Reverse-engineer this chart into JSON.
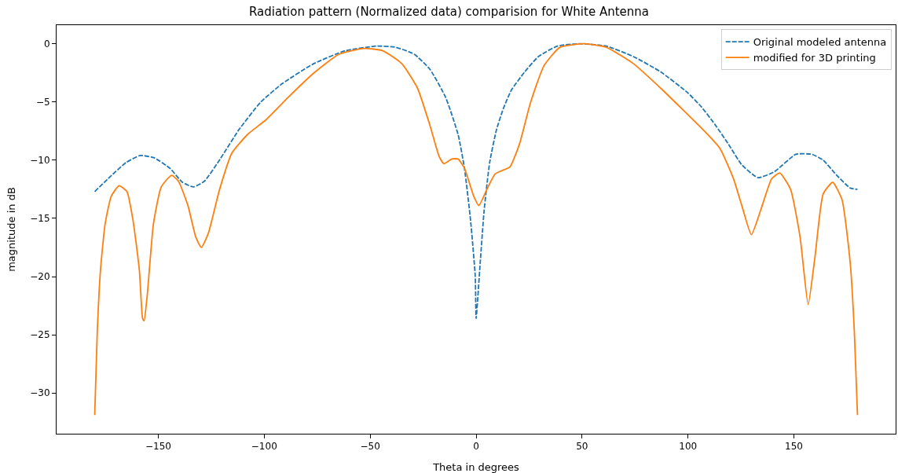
{
  "chart_data": {
    "type": "line",
    "title": "Radiation pattern (Normalized data) comparision for White Antenna",
    "xlabel": "Theta in degrees",
    "ylabel": "magnitude in dB",
    "xlim": [
      -198,
      198
    ],
    "xticks": [
      -150,
      -100,
      -50,
      0,
      50,
      100,
      150
    ],
    "ylim": [
      -33.5,
      1.6
    ],
    "yticks": [
      -30,
      -25,
      -20,
      -15,
      -10,
      -5,
      0
    ],
    "legend": "top right",
    "marker": "none",
    "series": [
      {
        "name": "Original modeled antenna",
        "color": "#1f77b4",
        "line_style": "dashed",
        "x": [
          -180,
          -172.6,
          -165.2,
          -158.5,
          -151.9,
          -144.5,
          -138.6,
          -133.4,
          -128.2,
          -120.8,
          -112,
          -101.6,
          -91.3,
          -76.5,
          -61.7,
          -46.9,
          -38,
          -29.2,
          -21.8,
          -14.4,
          -8.5,
          -5.5,
          -2.6,
          -0.4,
          0,
          1.9,
          3.8,
          6.4,
          9.6,
          12.8,
          16.6,
          23,
          29.4,
          38.4,
          48.6,
          61.4,
          74.2,
          87,
          99.8,
          106.2,
          112.6,
          119,
          125.4,
          133,
          140.7,
          150.9,
          158.6,
          163.8,
          170.2,
          176.6,
          180
        ],
        "values": [
          -12.7,
          -11.4,
          -10.2,
          -9.6,
          -9.8,
          -10.7,
          -11.9,
          -12.3,
          -11.8,
          -9.9,
          -7.4,
          -5.0,
          -3.4,
          -1.7,
          -0.6,
          -0.2,
          -0.3,
          -0.9,
          -2.2,
          -4.6,
          -7.8,
          -10.7,
          -15.2,
          -20.0,
          -23.6,
          -18.9,
          -14.3,
          -10.2,
          -7.4,
          -5.6,
          -4.0,
          -2.4,
          -1.1,
          -0.2,
          0.0,
          -0.2,
          -1.1,
          -2.4,
          -4.2,
          -5.4,
          -6.9,
          -8.6,
          -10.4,
          -11.5,
          -11.0,
          -9.5,
          -9.5,
          -10.0,
          -11.3,
          -12.4,
          -12.5
        ]
      },
      {
        "name": "modified for 3D printing",
        "color": "#ff7f0e",
        "line_style": "solid",
        "x": [
          -180,
          -178.8,
          -177.3,
          -175.1,
          -172.2,
          -168.5,
          -164.8,
          -161.9,
          -158.9,
          -157.4,
          -156.7,
          -155.2,
          -152.3,
          -148.6,
          -143.7,
          -140.5,
          -136,
          -132.3,
          -129.7,
          -126.4,
          -121.2,
          -115.3,
          -107.9,
          -99,
          -88.7,
          -76.5,
          -64.7,
          -52.9,
          -44,
          -35.1,
          -27.7,
          -21.8,
          -17.4,
          -15.2,
          -11.5,
          -8.5,
          -5.5,
          -1.1,
          1.3,
          5.1,
          8.9,
          12.1,
          15.9,
          20.5,
          25.6,
          32,
          39.6,
          51.2,
          61.4,
          74.2,
          87,
          97.2,
          108.8,
          115.1,
          121.5,
          125.4,
          129.9,
          134.3,
          139.5,
          143.3,
          148.4,
          152.9,
          156.7,
          160,
          163.8,
          168.3,
          172.7,
          176.6,
          178.5,
          180
        ],
        "values": [
          -31.9,
          -24.8,
          -19.5,
          -15.5,
          -13.1,
          -12.2,
          -12.7,
          -15.2,
          -19.5,
          -23.6,
          -23.8,
          -21.6,
          -15.5,
          -12.3,
          -11.3,
          -11.8,
          -13.9,
          -16.6,
          -17.5,
          -16.3,
          -12.6,
          -9.4,
          -7.8,
          -6.5,
          -4.6,
          -2.5,
          -0.9,
          -0.4,
          -0.6,
          -1.7,
          -3.8,
          -7.0,
          -9.7,
          -10.3,
          -9.9,
          -9.9,
          -10.7,
          -13.1,
          -13.9,
          -12.5,
          -11.2,
          -10.9,
          -10.6,
          -8.6,
          -5.1,
          -1.9,
          -0.3,
          0.0,
          -0.3,
          -1.7,
          -3.8,
          -5.6,
          -7.7,
          -9.0,
          -11.6,
          -13.9,
          -16.4,
          -14.3,
          -11.6,
          -11.1,
          -12.5,
          -16.6,
          -22.4,
          -18.2,
          -12.9,
          -11.9,
          -13.4,
          -18.9,
          -24.7,
          -31.9
        ]
      }
    ]
  }
}
